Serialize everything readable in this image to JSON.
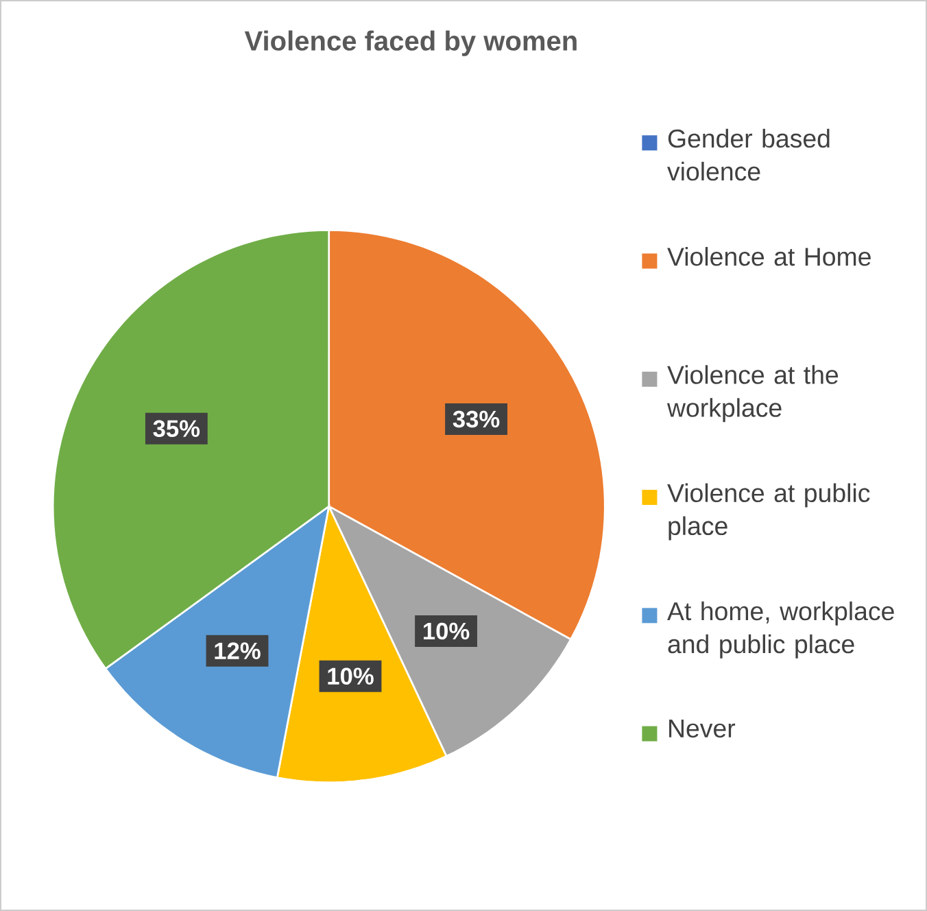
{
  "chart_data": {
    "type": "pie",
    "title": "Violence faced by women",
    "categories": [
      "Gender based violence",
      "Violence at Home",
      "Violence at the workplace",
      "Violence at public place",
      "At home, workplace and public place",
      "Never"
    ],
    "values": [
      0,
      33,
      10,
      10,
      12,
      35
    ],
    "colors": [
      "#4472c4",
      "#ed7d31",
      "#a5a5a5",
      "#ffc000",
      "#5b9bd5",
      "#70ad47"
    ],
    "value_labels": [
      null,
      "33%",
      "10%",
      "10%",
      "12%",
      "35%"
    ],
    "legend": "right"
  }
}
